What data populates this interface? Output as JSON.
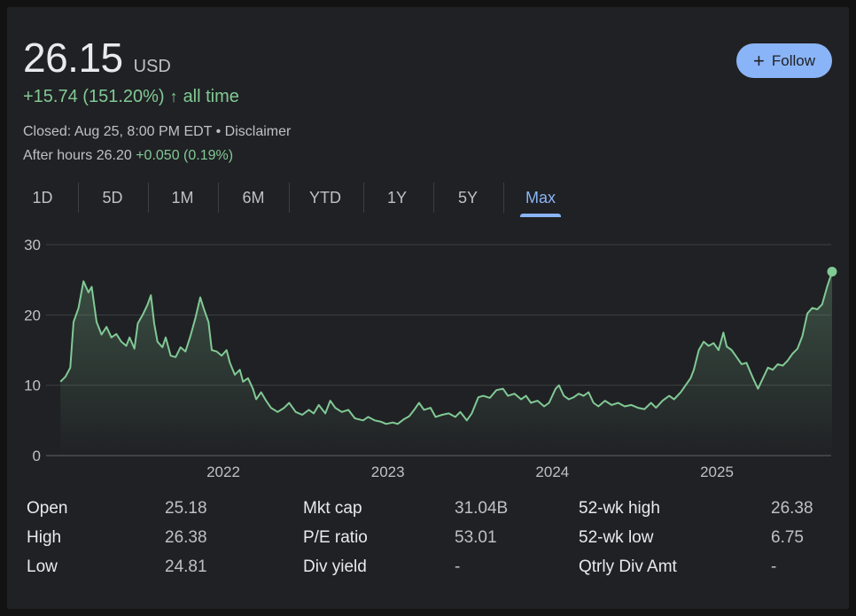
{
  "quote": {
    "price": "26.15",
    "currency": "USD",
    "change": "+15.74 (151.20%)",
    "change_arrow": "↑",
    "change_period": "all time",
    "closed_text": "Closed: Aug 25, 8:00 PM EDT • Disclaimer",
    "after_hours_label": "After hours 26.20",
    "after_hours_change": "+0.050 (0.19%)"
  },
  "follow_button": {
    "icon": "plus-icon",
    "label": "Follow"
  },
  "tabs": [
    "1D",
    "5D",
    "1M",
    "6M",
    "YTD",
    "1Y",
    "5Y",
    "Max"
  ],
  "active_tab": "Max",
  "colors": {
    "line": "#81c995",
    "accent": "#8ab4f8",
    "positive": "#81c995",
    "background": "#202124"
  },
  "chart_data": {
    "type": "area",
    "ylim": [
      0,
      30
    ],
    "y_ticks": [
      "0",
      "10",
      "20",
      "30"
    ],
    "x_ticks": [
      {
        "label": "2022",
        "t": 2022.0
      },
      {
        "label": "2023",
        "t": 2023.0
      },
      {
        "label": "2024",
        "t": 2024.0
      },
      {
        "label": "2025",
        "t": 2025.0
      }
    ],
    "grid": true,
    "series": [
      {
        "points": [
          [
            2021.01,
            10.5
          ],
          [
            2021.04,
            11.2
          ],
          [
            2021.07,
            12.5
          ],
          [
            2021.09,
            19.0
          ],
          [
            2021.12,
            21.0
          ],
          [
            2021.15,
            24.8
          ],
          [
            2021.18,
            23.2
          ],
          [
            2021.2,
            24.0
          ],
          [
            2021.23,
            19.0
          ],
          [
            2021.26,
            17.2
          ],
          [
            2021.29,
            18.3
          ],
          [
            2021.32,
            16.8
          ],
          [
            2021.35,
            17.3
          ],
          [
            2021.38,
            16.2
          ],
          [
            2021.41,
            15.6
          ],
          [
            2021.43,
            16.8
          ],
          [
            2021.46,
            15.2
          ],
          [
            2021.48,
            18.8
          ],
          [
            2021.51,
            20.0
          ],
          [
            2021.54,
            21.5
          ],
          [
            2021.56,
            22.8
          ],
          [
            2021.58,
            18.8
          ],
          [
            2021.6,
            16.2
          ],
          [
            2021.63,
            15.4
          ],
          [
            2021.65,
            16.8
          ],
          [
            2021.68,
            14.2
          ],
          [
            2021.71,
            14.0
          ],
          [
            2021.74,
            15.4
          ],
          [
            2021.77,
            14.8
          ],
          [
            2021.8,
            17.0
          ],
          [
            2021.83,
            19.5
          ],
          [
            2021.86,
            22.5
          ],
          [
            2021.88,
            21.0
          ],
          [
            2021.91,
            19.0
          ],
          [
            2021.93,
            15.0
          ],
          [
            2021.96,
            14.8
          ],
          [
            2021.99,
            14.2
          ],
          [
            2022.02,
            15.0
          ],
          [
            2022.04,
            13.2
          ],
          [
            2022.07,
            11.5
          ],
          [
            2022.1,
            12.2
          ],
          [
            2022.12,
            10.5
          ],
          [
            2022.15,
            11.0
          ],
          [
            2022.18,
            9.5
          ],
          [
            2022.2,
            8.0
          ],
          [
            2022.23,
            9.0
          ],
          [
            2022.26,
            7.8
          ],
          [
            2022.29,
            6.8
          ],
          [
            2022.33,
            6.2
          ],
          [
            2022.37,
            6.8
          ],
          [
            2022.4,
            7.5
          ],
          [
            2022.44,
            6.2
          ],
          [
            2022.48,
            5.8
          ],
          [
            2022.52,
            6.5
          ],
          [
            2022.55,
            6.0
          ],
          [
            2022.58,
            7.2
          ],
          [
            2022.62,
            6.0
          ],
          [
            2022.65,
            7.8
          ],
          [
            2022.68,
            6.8
          ],
          [
            2022.72,
            6.2
          ],
          [
            2022.76,
            6.5
          ],
          [
            2022.8,
            5.3
          ],
          [
            2022.85,
            5.0
          ],
          [
            2022.88,
            5.5
          ],
          [
            2022.92,
            5.0
          ],
          [
            2022.96,
            4.8
          ],
          [
            2022.99,
            4.5
          ],
          [
            2023.03,
            4.7
          ],
          [
            2023.06,
            4.5
          ],
          [
            2023.1,
            5.2
          ],
          [
            2023.13,
            5.6
          ],
          [
            2023.16,
            6.5
          ],
          [
            2023.19,
            7.5
          ],
          [
            2023.22,
            6.5
          ],
          [
            2023.26,
            6.8
          ],
          [
            2023.29,
            5.5
          ],
          [
            2023.33,
            5.8
          ],
          [
            2023.37,
            6.0
          ],
          [
            2023.41,
            5.5
          ],
          [
            2023.44,
            6.2
          ],
          [
            2023.48,
            5.0
          ],
          [
            2023.51,
            6.0
          ],
          [
            2023.55,
            8.3
          ],
          [
            2023.58,
            8.5
          ],
          [
            2023.62,
            8.2
          ],
          [
            2023.66,
            9.3
          ],
          [
            2023.7,
            9.5
          ],
          [
            2023.73,
            8.5
          ],
          [
            2023.77,
            8.8
          ],
          [
            2023.81,
            8.0
          ],
          [
            2023.84,
            8.5
          ],
          [
            2023.87,
            7.5
          ],
          [
            2023.91,
            7.8
          ],
          [
            2023.95,
            7.0
          ],
          [
            2023.98,
            7.5
          ],
          [
            2024.02,
            9.5
          ],
          [
            2024.04,
            10.0
          ],
          [
            2024.07,
            8.5
          ],
          [
            2024.1,
            8.0
          ],
          [
            2024.13,
            8.3
          ],
          [
            2024.16,
            8.8
          ],
          [
            2024.19,
            8.5
          ],
          [
            2024.22,
            9.0
          ],
          [
            2024.25,
            7.5
          ],
          [
            2024.28,
            7.0
          ],
          [
            2024.32,
            7.8
          ],
          [
            2024.36,
            7.2
          ],
          [
            2024.4,
            7.5
          ],
          [
            2024.44,
            7.0
          ],
          [
            2024.48,
            7.2
          ],
          [
            2024.52,
            6.8
          ],
          [
            2024.56,
            6.6
          ],
          [
            2024.6,
            7.5
          ],
          [
            2024.63,
            6.8
          ],
          [
            2024.67,
            7.8
          ],
          [
            2024.71,
            8.5
          ],
          [
            2024.74,
            8.0
          ],
          [
            2024.78,
            9.0
          ],
          [
            2024.81,
            10.0
          ],
          [
            2024.84,
            11.0
          ],
          [
            2024.86,
            12.2
          ],
          [
            2024.89,
            15.0
          ],
          [
            2024.92,
            16.2
          ],
          [
            2024.95,
            15.6
          ],
          [
            2024.98,
            16.0
          ],
          [
            2025.01,
            15.0
          ],
          [
            2025.04,
            17.5
          ],
          [
            2025.06,
            15.5
          ],
          [
            2025.09,
            15.0
          ],
          [
            2025.12,
            14.0
          ],
          [
            2025.15,
            13.0
          ],
          [
            2025.18,
            13.2
          ],
          [
            2025.22,
            11.0
          ],
          [
            2025.25,
            9.5
          ],
          [
            2025.28,
            11.0
          ],
          [
            2025.31,
            12.5
          ],
          [
            2025.34,
            12.2
          ],
          [
            2025.37,
            13.0
          ],
          [
            2025.4,
            12.8
          ],
          [
            2025.43,
            13.5
          ],
          [
            2025.46,
            14.5
          ],
          [
            2025.49,
            15.2
          ],
          [
            2025.52,
            17.0
          ],
          [
            2025.55,
            20.2
          ],
          [
            2025.58,
            21.0
          ],
          [
            2025.61,
            20.8
          ],
          [
            2025.64,
            21.5
          ],
          [
            2025.67,
            24.0
          ],
          [
            2025.7,
            26.15
          ]
        ]
      }
    ]
  },
  "stats": [
    {
      "label": "Open",
      "value": "25.18"
    },
    {
      "label": "High",
      "value": "26.38"
    },
    {
      "label": "Low",
      "value": "24.81"
    },
    {
      "label": "Mkt cap",
      "value": "31.04B"
    },
    {
      "label": "P/E ratio",
      "value": "53.01"
    },
    {
      "label": "Div yield",
      "value": "-"
    },
    {
      "label": "52-wk high",
      "value": "26.38"
    },
    {
      "label": "52-wk low",
      "value": "6.75"
    },
    {
      "label": "Qtrly Div Amt",
      "value": "-"
    }
  ]
}
